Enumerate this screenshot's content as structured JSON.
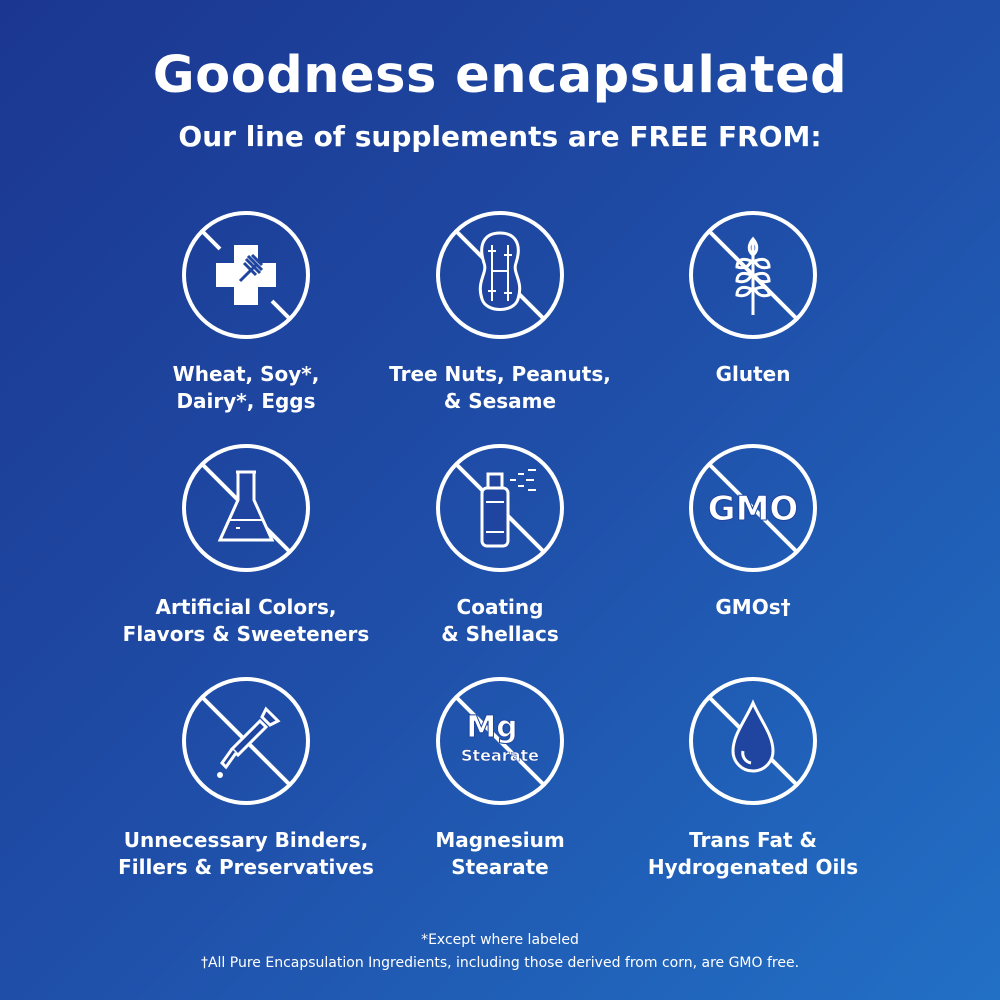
{
  "header": {
    "title": "Goodness encapsulated",
    "subtitle": "Our line of supplements are FREE FROM:"
  },
  "items": [
    {
      "icon": "allergen-cross-fork-icon",
      "label": "Wheat, Soy*,\nDairy*, Eggs"
    },
    {
      "icon": "peanut-icon",
      "label": "Tree Nuts, Peanuts,\n& Sesame"
    },
    {
      "icon": "wheat-icon",
      "label": "Gluten"
    },
    {
      "icon": "flask-icon",
      "label": "Artificial Colors,\nFlavors & Sweeteners"
    },
    {
      "icon": "spray-can-icon",
      "label": "Coating\n& Shellacs"
    },
    {
      "icon": "gmo-icon",
      "label": "GMOs†",
      "icon_text": "GMO"
    },
    {
      "icon": "dropper-icon",
      "label": "Unnecessary Binders,\nFillers & Preservatives"
    },
    {
      "icon": "mg-stearate-icon",
      "label": "Magnesium\nStearate",
      "icon_text": "Mg",
      "icon_subtext": "Stearate"
    },
    {
      "icon": "oil-drop-icon",
      "label": "Trans Fat &\nHydrogenated Oils"
    }
  ],
  "footnotes": [
    "*Except where labeled",
    "†All Pure Encapsulation Ingredients, including those derived from corn, are GMO free."
  ],
  "colors": {
    "background_start": "#1b3690",
    "background_end": "#2270c6",
    "foreground": "#ffffff"
  }
}
